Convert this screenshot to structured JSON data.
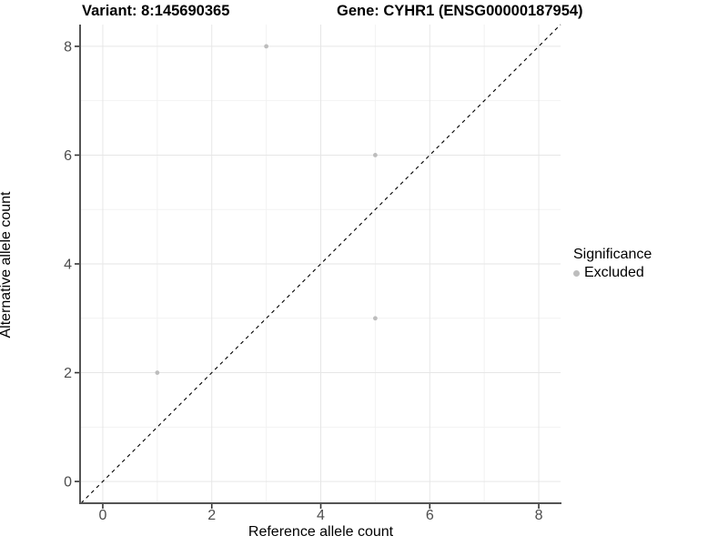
{
  "titles": {
    "variant": "Variant: 8:145690365",
    "gene": "Gene: CYHR1 (ENSG00000187954)"
  },
  "chart_data": {
    "type": "scatter",
    "title_left": "Variant: 8:145690365",
    "title_right": "Gene: CYHR1 (ENSG00000187954)",
    "xlabel": "Reference allele count",
    "ylabel": "Alternative allele count",
    "xlim": [
      -0.4,
      8.4
    ],
    "ylim": [
      -0.4,
      8.4
    ],
    "xticks": [
      0,
      2,
      4,
      6,
      8
    ],
    "yticks": [
      0,
      2,
      4,
      6,
      8
    ],
    "xticks_minor": [
      1,
      3,
      5,
      7
    ],
    "yticks_minor": [
      1,
      3,
      5,
      7
    ],
    "grid": "on",
    "points": [
      {
        "x": 3,
        "y": 8,
        "series": "Excluded"
      },
      {
        "x": 5,
        "y": 6,
        "series": "Excluded"
      },
      {
        "x": 5,
        "y": 3,
        "series": "Excluded"
      },
      {
        "x": 1,
        "y": 2,
        "series": "Excluded"
      }
    ],
    "identity_line": {
      "type": "dashed",
      "x1": -0.4,
      "y1": -0.4,
      "x2": 8.4,
      "y2": 8.4
    },
    "legend": {
      "title": "Significance",
      "position": "right",
      "items": [
        {
          "label": "Excluded",
          "color": "#bdbdbd"
        }
      ]
    }
  },
  "colors": {
    "point": "#bdbdbd",
    "major_grid": "#e6e6e6",
    "minor_grid": "#f2f2f2",
    "axis_line": "#545454",
    "tick_mark": "#333333",
    "tick_label": "#4d4d4d",
    "identity_line": "#000000",
    "background": "#ffffff"
  }
}
